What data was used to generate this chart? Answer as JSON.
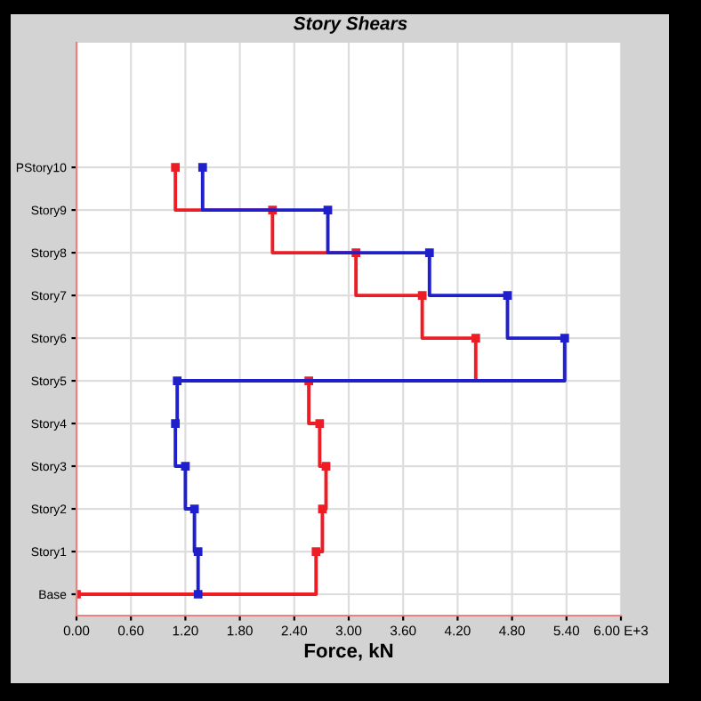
{
  "chart_data": {
    "type": "step",
    "orientation": "horizontal",
    "title": "Story Shears",
    "xlabel": "Force, kN",
    "categories": [
      "PStory10",
      "Story9",
      "Story8",
      "Story7",
      "Story6",
      "Story5",
      "Story4",
      "Story3",
      "Story2",
      "Story1",
      "Base"
    ],
    "series": [
      {
        "color": "#ee1c24",
        "values": [
          1.09,
          2.16,
          3.08,
          3.81,
          4.4,
          2.56,
          2.68,
          2.75,
          2.71,
          2.64,
          0
        ]
      },
      {
        "color": "#1f1fcc",
        "values": [
          1.39,
          2.77,
          3.89,
          4.75,
          5.38,
          1.11,
          1.09,
          1.2,
          1.3,
          1.34,
          1.34
        ]
      }
    ],
    "xlim": [
      0,
      6
    ],
    "xticks": [
      {
        "value": 0,
        "label": "0.00"
      },
      {
        "value": 0.6,
        "label": "0.60"
      },
      {
        "value": 1.2,
        "label": "1.20"
      },
      {
        "value": 1.8,
        "label": "1.80"
      },
      {
        "value": 2.4,
        "label": "2.40"
      },
      {
        "value": 3.0,
        "label": "3.00"
      },
      {
        "value": 3.6,
        "label": "3.60"
      },
      {
        "value": 4.2,
        "label": "4.20"
      },
      {
        "value": 4.8,
        "label": "4.80"
      },
      {
        "value": 5.4,
        "label": "5.40"
      },
      {
        "value": 6.0,
        "label": "6.00 E+3"
      }
    ],
    "grid": true,
    "marker": "square",
    "legend": false
  }
}
